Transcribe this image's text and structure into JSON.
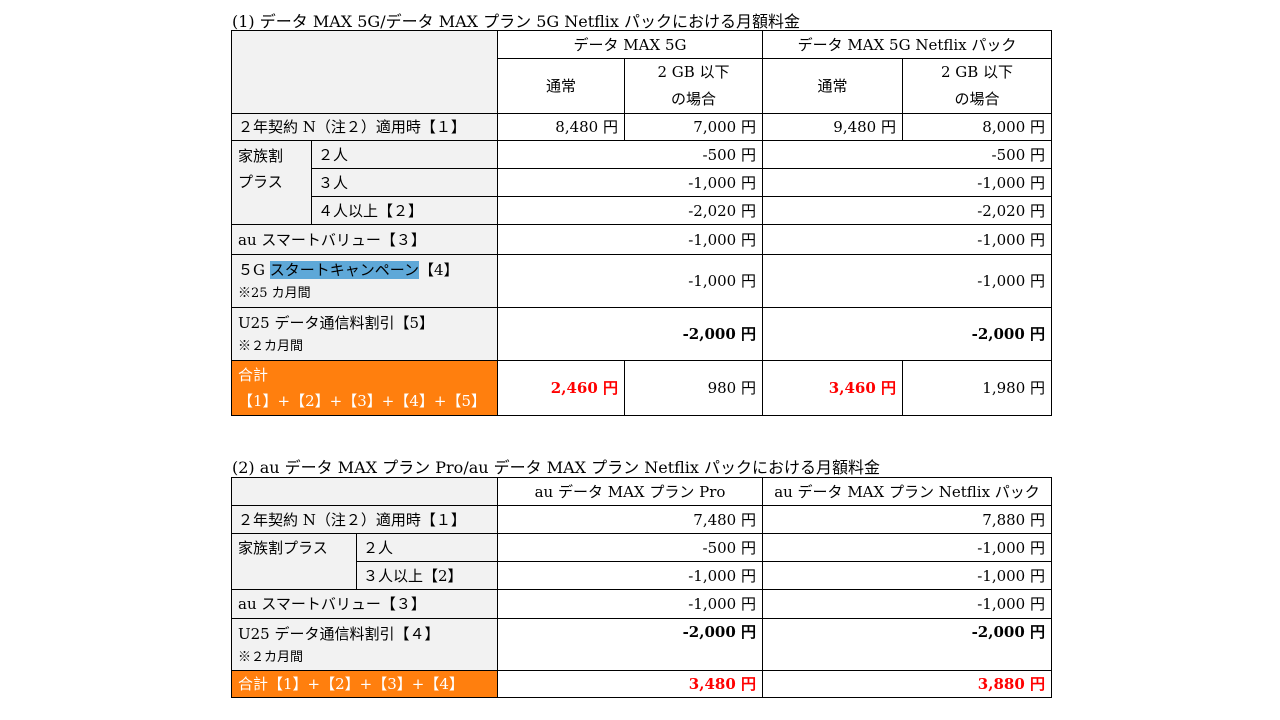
{
  "t1": {
    "caption": "(1) データ MAX 5G/データ MAX プラン 5G Netflix パックにおける月額料金",
    "hdr": {
      "plan_a": "データ MAX 5G",
      "plan_b": "データ MAX 5G Netflix パック",
      "normal_a": "通常",
      "small_a1": "2 GB 以下",
      "small_a2": "の場合",
      "normal_b": "通常",
      "small_b1": "2 GB 以下",
      "small_b2": "の場合"
    },
    "rows": {
      "contract": {
        "label": "２年契約 N（注２）適用時【１】",
        "a_normal": "8,480 円",
        "a_small": "7,000 円",
        "b_normal": "9,480 円",
        "b_small": "8,000 円"
      },
      "family": {
        "label1": "家族割",
        "label2": "プラス",
        "r1": {
          "label": "２人",
          "a": "-500 円",
          "b": "-500 円"
        },
        "r2": {
          "label": "３人",
          "a": "-1,000 円",
          "b": "-1,000 円"
        },
        "r3": {
          "label": "４人以上【２】",
          "a": "-2,020 円",
          "b": "-2,020 円"
        }
      },
      "smart": {
        "label": "au スマートバリュー【３】",
        "a": "-1,000 円",
        "b": "-1,000 円"
      },
      "campaign": {
        "pre": "５G ",
        "highlight": "スタートキャンペーン",
        "post": "【4】",
        "note": "※25 カ月間",
        "a": "-1,000 円",
        "b": "-1,000 円"
      },
      "u25": {
        "label": "U25 データ通信料割引【5】",
        "note": "※２カ月間",
        "a": "-2,000 円",
        "b": "-2,000 円"
      },
      "total": {
        "label1": "合計",
        "label2": "【1】+【2】+【3】+【4】+【5】",
        "a_normal": "2,460 円",
        "a_small": "980 円",
        "b_normal": "3,460 円",
        "b_small": "1,980 円"
      }
    }
  },
  "t2": {
    "caption": "(2) au データ MAX プラン Pro/au データ MAX プラン Netflix パックにおける月額料金",
    "hdr": {
      "plan_a": "au データ MAX プラン Pro",
      "plan_b": "au データ MAX プラン Netflix パック"
    },
    "rows": {
      "contract": {
        "label": "２年契約 N（注２）適用時【１】",
        "a": "7,480 円",
        "b": "7,880 円"
      },
      "family": {
        "label": "家族割プラス",
        "r1": {
          "label": "２人",
          "a": "-500 円",
          "b": "-1,000 円"
        },
        "r2": {
          "label": "３人以上【2】",
          "a": "-1,000 円",
          "b": "-1,000 円"
        }
      },
      "smart": {
        "label": "au スマートバリュー【３】",
        "a": "-1,000 円",
        "b": "-1,000 円"
      },
      "u25": {
        "label": "U25 データ通信料割引【４】",
        "note": "※２カ月間",
        "a": "-2,000 円",
        "b": "-2,000 円"
      },
      "total": {
        "label": "合計【1】+【2】+【3】+【4】",
        "a": "3,480 円",
        "b": "3,880 円"
      }
    }
  },
  "colors": {
    "orange": "#ff7f0e",
    "red": "#ff0000",
    "highlight": "#5ea8d8",
    "gray": "#f2f2f2"
  }
}
